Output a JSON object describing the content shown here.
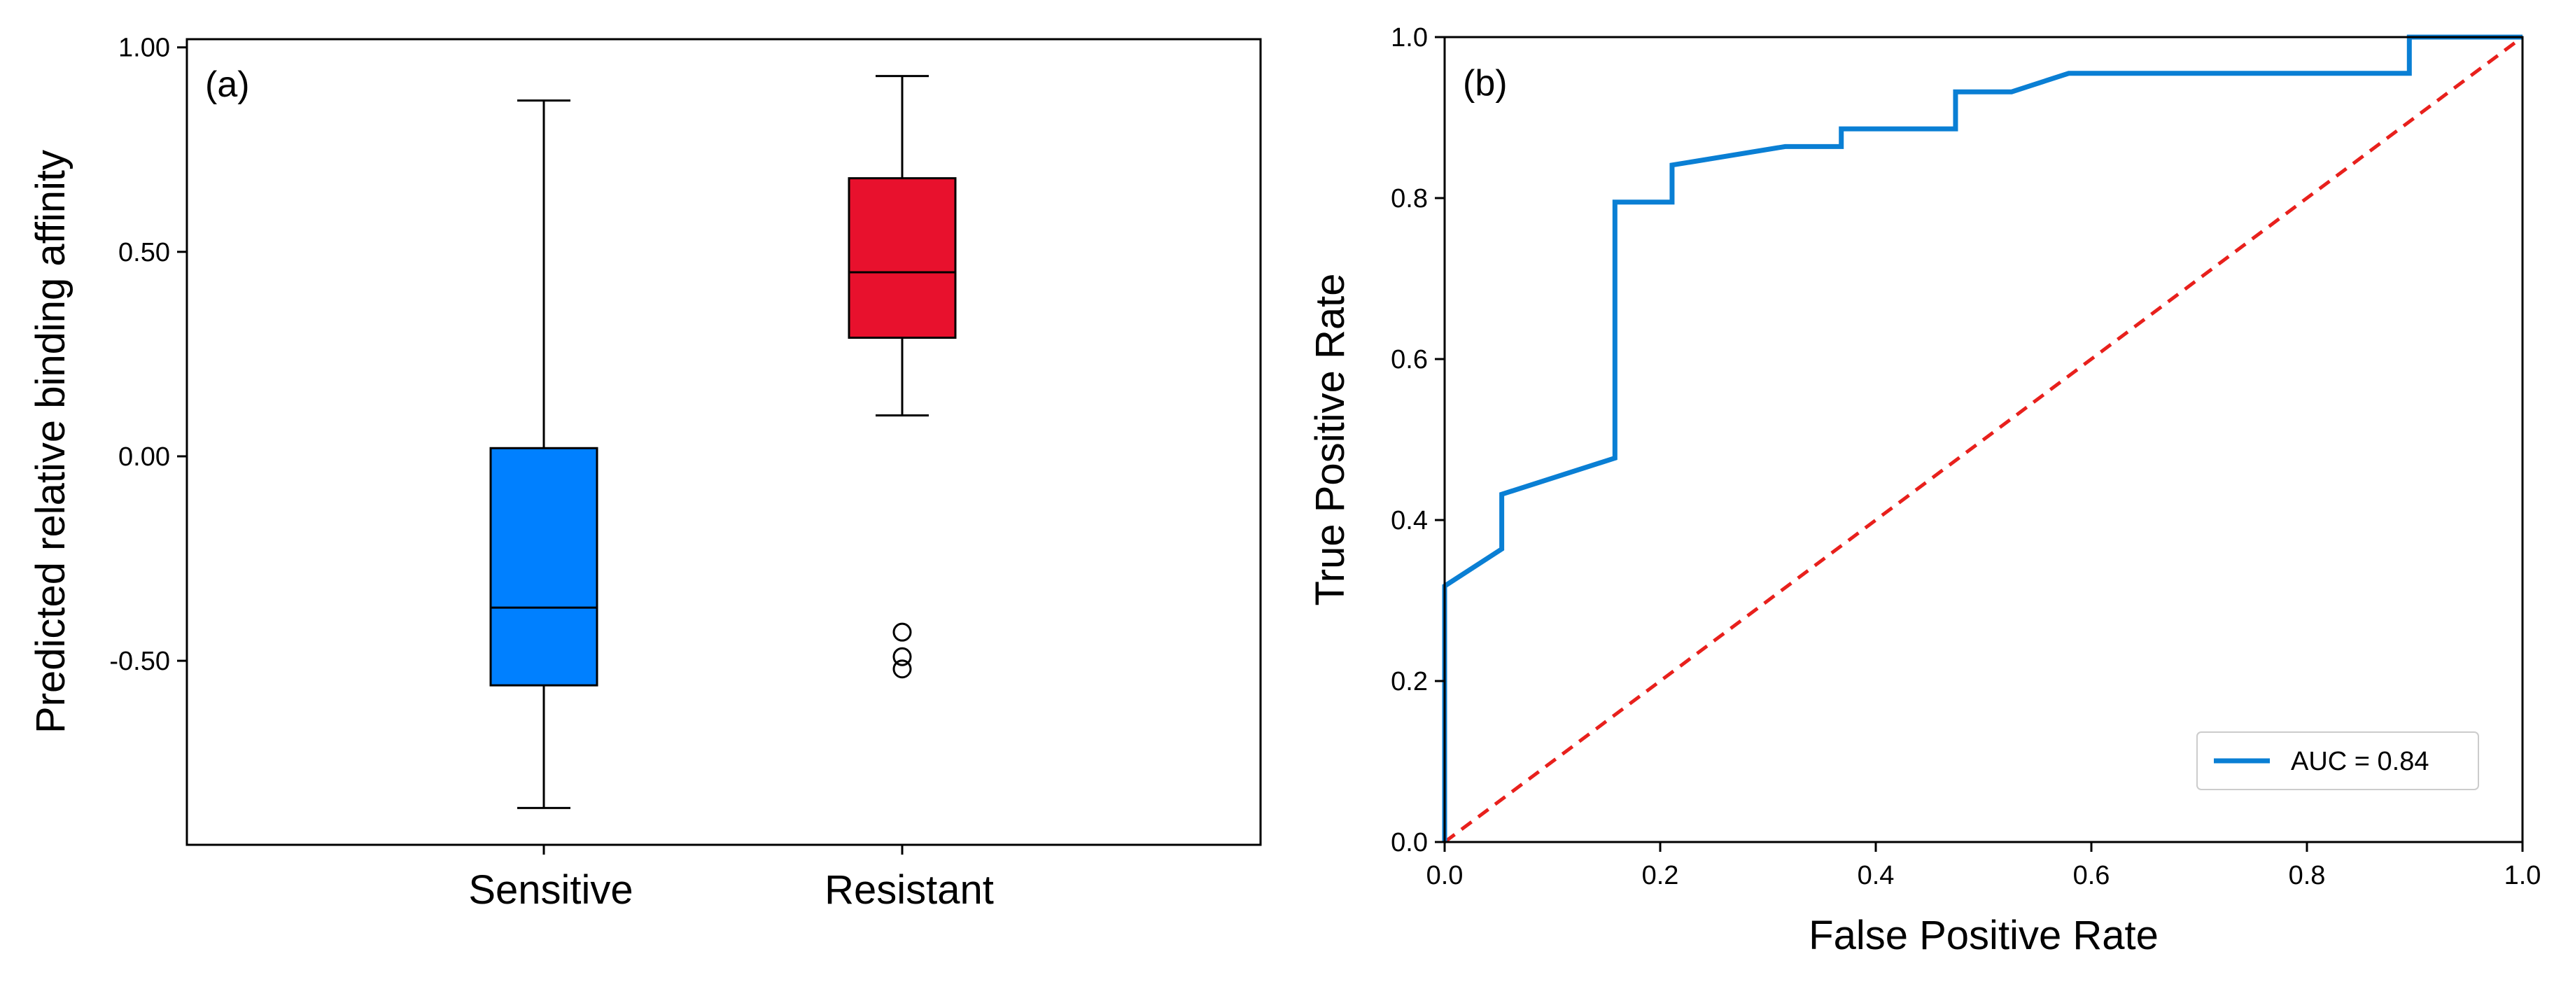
{
  "chart_data": [
    {
      "type": "box",
      "panel_label": "(a)",
      "title": "",
      "xlabel": "",
      "ylabel": "Predicted relative binding affinity",
      "ylim": [
        -0.95,
        1.02
      ],
      "yticks": [
        -0.5,
        0.0,
        0.5,
        1.0
      ],
      "ytick_labels": [
        "-0.50",
        "0.00",
        "0.50",
        "1.00"
      ],
      "categories": [
        "Sensitive",
        "Resistant"
      ],
      "boxes": [
        {
          "name": "Sensitive",
          "color": "#0080ff",
          "whisker_low": -0.86,
          "q1": -0.56,
          "median": -0.37,
          "q3": 0.02,
          "whisker_high": 0.87,
          "outliers": []
        },
        {
          "name": "Resistant",
          "color": "#e8112d",
          "whisker_low": 0.1,
          "q1": 0.29,
          "median": 0.45,
          "q3": 0.68,
          "whisker_high": 0.93,
          "outliers": [
            -0.43,
            -0.49,
            -0.52
          ]
        }
      ]
    },
    {
      "type": "line",
      "panel_label": "(b)",
      "title": "",
      "xlabel": "False Positive Rate",
      "ylabel": "True Positive Rate",
      "xlim": [
        0.0,
        1.0
      ],
      "ylim": [
        0.0,
        1.0
      ],
      "xticks": [
        0.0,
        0.2,
        0.4,
        0.6,
        0.8,
        1.0
      ],
      "xtick_labels": [
        "0.0",
        "0.2",
        "0.4",
        "0.6",
        "0.8",
        "1.0"
      ],
      "yticks": [
        0.0,
        0.2,
        0.4,
        0.6,
        0.8,
        1.0
      ],
      "ytick_labels": [
        "0.0",
        "0.2",
        "0.4",
        "0.6",
        "0.8",
        "1.0"
      ],
      "legend_position": "lower-right",
      "series": [
        {
          "name": "AUC = 0.84",
          "color": "#0a7fd4",
          "style": "solid",
          "x": [
            0.0,
            0.0,
            0.053,
            0.053,
            0.158,
            0.158,
            0.211,
            0.211,
            0.316,
            0.368,
            0.368,
            0.474,
            0.474,
            0.526,
            0.579,
            0.895,
            0.895,
            1.0
          ],
          "y": [
            0.0,
            0.318,
            0.364,
            0.432,
            0.477,
            0.795,
            0.795,
            0.841,
            0.864,
            0.864,
            0.886,
            0.886,
            0.932,
            0.932,
            0.955,
            0.955,
            1.0,
            1.0
          ]
        },
        {
          "name": "chance",
          "color": "#e8201c",
          "style": "dashed",
          "x": [
            0.0,
            1.0
          ],
          "y": [
            0.0,
            1.0
          ]
        }
      ],
      "legend_entries": [
        "AUC = 0.84"
      ]
    }
  ]
}
